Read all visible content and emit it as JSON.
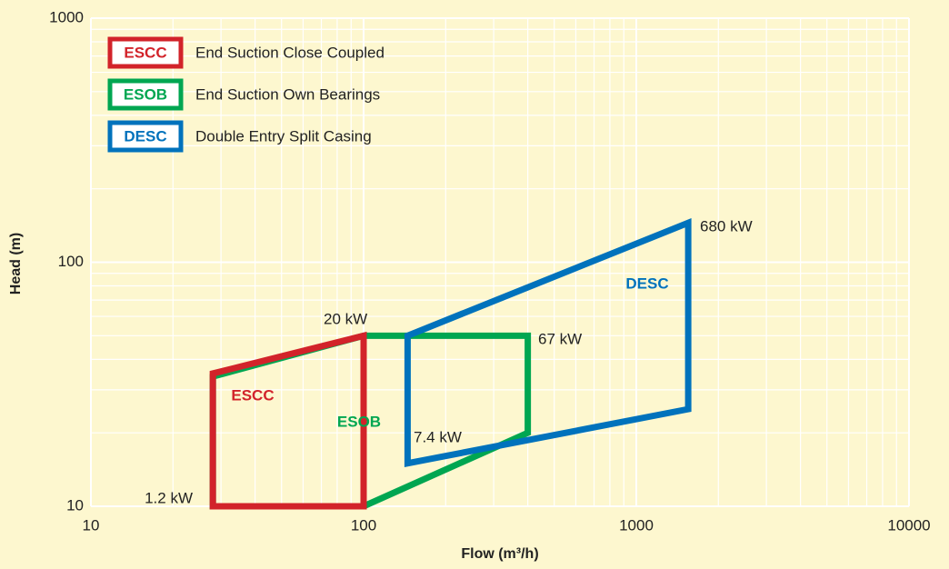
{
  "chart_data": {
    "type": "polygon",
    "xlabel": "Flow (m³/h)",
    "ylabel": "Head (m)",
    "xscale": "log",
    "yscale": "log",
    "xlim": [
      10,
      10000
    ],
    "ylim": [
      10,
      1000
    ],
    "xticks": [
      10,
      100,
      1000,
      10000
    ],
    "yticks": [
      10,
      100,
      1000
    ],
    "grid": true,
    "minor_grid": true,
    "series": [
      {
        "name": "ESCC",
        "description": "End Suction Close Coupled",
        "color": "#d2232a",
        "x": [
          28,
          28,
          100,
          100
        ],
        "y": [
          10,
          35,
          50,
          10
        ]
      },
      {
        "name": "ESOB",
        "description": "End Suction Own Bearings",
        "color": "#00a651",
        "x": [
          28,
          28,
          100,
          400,
          400,
          100
        ],
        "y": [
          10,
          34,
          50,
          50,
          20,
          10
        ]
      },
      {
        "name": "DESC",
        "description": "Double Entry Split Casing",
        "color": "#0072bc",
        "x": [
          145,
          145,
          1550,
          1550
        ],
        "y": [
          15,
          50,
          145,
          25
        ]
      }
    ],
    "annotations": [
      "1.2 kW",
      "20 kW",
      "67 kW",
      "7.4 kW",
      "680 kW"
    ]
  }
}
